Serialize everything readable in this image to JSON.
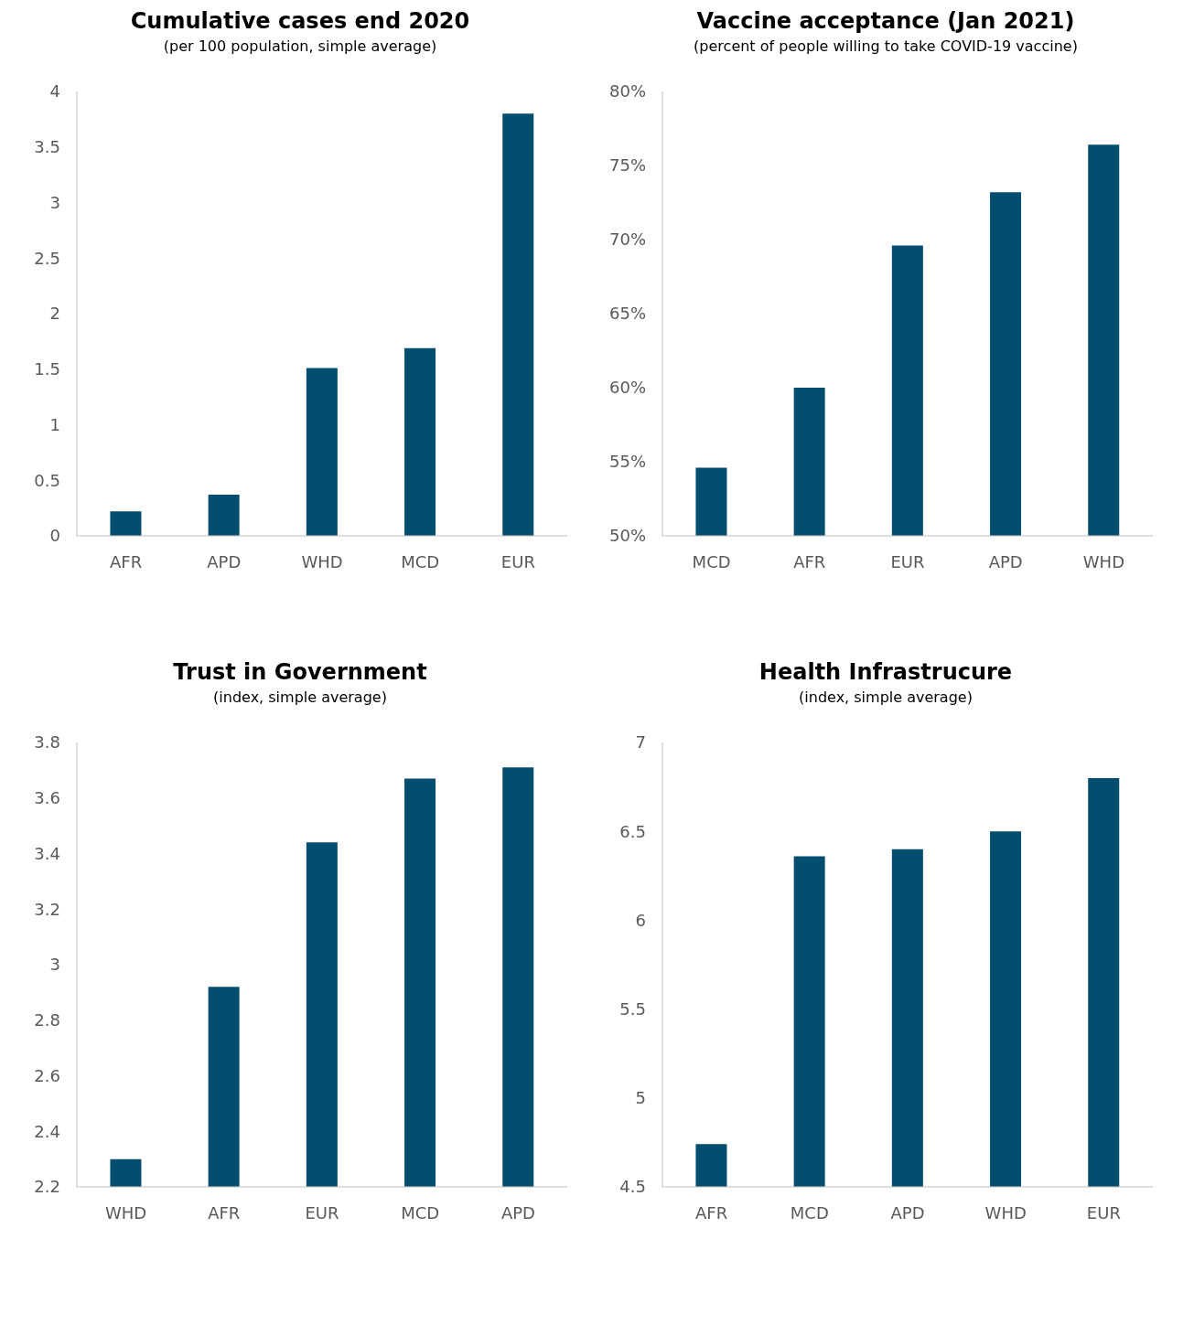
{
  "chart_data": [
    {
      "type": "bar",
      "title": "Cumulative cases end 2020",
      "subtitle": "(per 100 population, simple average)",
      "categories": [
        "AFR",
        "APD",
        "WHD",
        "MCD",
        "EUR"
      ],
      "values": [
        0.22,
        0.37,
        1.51,
        1.69,
        3.8
      ],
      "color": "#034e6e",
      "ylim": [
        0,
        4
      ],
      "yticks": [
        0,
        0.5,
        1,
        1.5,
        2,
        2.5,
        3,
        3.5,
        4
      ]
    },
    {
      "type": "bar",
      "title": "Vaccine acceptance (Jan 2021)",
      "subtitle": "(percent of people willing to take COVID-19 vaccine)",
      "categories": [
        "MCD",
        "AFR",
        "EUR",
        "APD",
        "WHD"
      ],
      "values": [
        54.6,
        60.0,
        69.6,
        73.2,
        76.4
      ],
      "color": "#034e6e",
      "ylim": [
        50,
        80
      ],
      "yticks": [
        {
          "value": 50,
          "label": "50%"
        },
        {
          "value": 55,
          "label": "55%"
        },
        {
          "value": 60,
          "label": "60%"
        },
        {
          "value": 65,
          "label": "65%"
        },
        {
          "value": 70,
          "label": "70%"
        },
        {
          "value": 75,
          "label": "75%"
        },
        {
          "value": 80,
          "label": "80%"
        }
      ]
    },
    {
      "type": "bar",
      "title": "Trust in Government",
      "subtitle": "(index, simple average)",
      "categories": [
        "WHD",
        "AFR",
        "EUR",
        "MCD",
        "APD"
      ],
      "values": [
        2.3,
        2.92,
        3.44,
        3.67,
        3.71
      ],
      "color": "#034e6e",
      "ylim": [
        2.2,
        3.8
      ],
      "yticks": [
        2.2,
        2.4,
        2.6,
        2.8,
        3,
        3.2,
        3.4,
        3.6,
        3.8
      ]
    },
    {
      "type": "bar",
      "title": "Health Infrastrucure",
      "subtitle": "(index, simple average)",
      "categories": [
        "AFR",
        "MCD",
        "APD",
        "WHD",
        "EUR"
      ],
      "values": [
        4.74,
        6.36,
        6.4,
        6.5,
        6.8
      ],
      "color": "#034e6e",
      "ylim": [
        4.5,
        7
      ],
      "yticks": [
        4.5,
        5,
        5.5,
        6,
        6.5,
        7
      ]
    }
  ]
}
